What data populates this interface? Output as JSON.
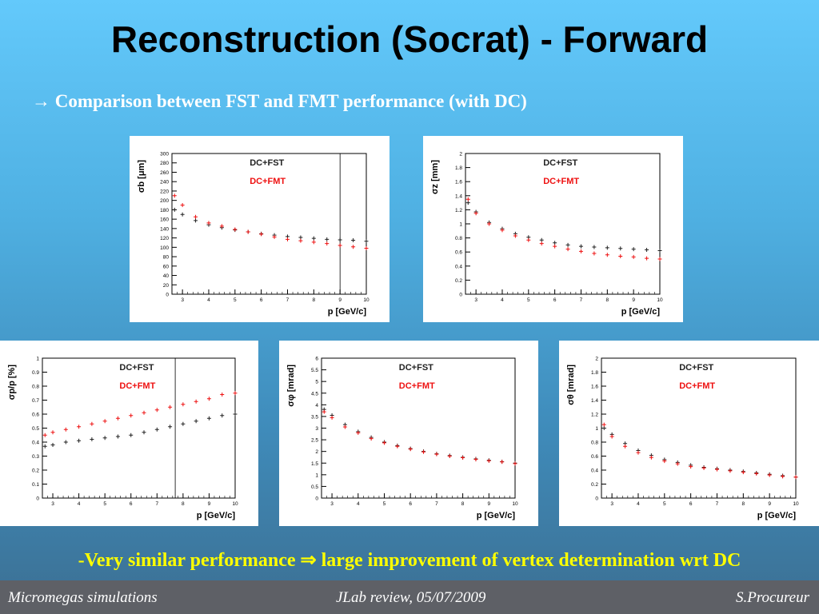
{
  "slide": {
    "title": "Reconstruction (Socrat) - Forward",
    "subtitle": "→ Comparison between FST and FMT performance (with DC)",
    "conclusion": "-Very similar performance ⇒ large improvement of vertex determination wrt DC",
    "footer": {
      "left": "Micromegas simulations",
      "center": "JLab review, 05/07/2009",
      "right": "S.Procureur"
    }
  },
  "colors": {
    "dc_fst": "#222222",
    "dc_fmt": "#ee1111",
    "axis": "#000000"
  },
  "chart_data": [
    {
      "type": "scatter",
      "ylabel": "σb [μm]",
      "xlabel": "p [GeV/c]",
      "xlim": [
        2.6,
        10
      ],
      "xticks": [
        3,
        4,
        5,
        6,
        7,
        8,
        9,
        10
      ],
      "ylim": [
        0,
        300
      ],
      "yticks": [
        0,
        20,
        40,
        60,
        80,
        100,
        120,
        140,
        160,
        180,
        200,
        220,
        240,
        260,
        280,
        300
      ],
      "vline": 9,
      "series": [
        {
          "name": "DC+FST",
          "x": [
            2.7,
            3,
            3.5,
            4,
            4.5,
            5,
            5.5,
            6,
            6.5,
            7,
            7.5,
            8,
            8.5,
            9,
            9.5,
            10
          ],
          "y": [
            180,
            170,
            157,
            148,
            142,
            137,
            133,
            129,
            126,
            123,
            121,
            119,
            117,
            116,
            115,
            113
          ]
        },
        {
          "name": "DC+FMT",
          "x": [
            2.7,
            3,
            3.5,
            4,
            4.5,
            5,
            5.5,
            6,
            6.5,
            7,
            7.5,
            8,
            8.5,
            9,
            9.5,
            10
          ],
          "y": [
            210,
            190,
            165,
            152,
            145,
            138,
            133,
            128,
            122,
            117,
            114,
            111,
            108,
            104,
            101,
            98
          ]
        }
      ]
    },
    {
      "type": "scatter",
      "ylabel": "σz [mm]",
      "xlabel": "p [GeV/c]",
      "xlim": [
        2.6,
        10
      ],
      "xticks": [
        3,
        4,
        5,
        6,
        7,
        8,
        9,
        10
      ],
      "ylim": [
        0,
        2
      ],
      "yticks": [
        0,
        0.2,
        0.4,
        0.6,
        0.8,
        1,
        1.2,
        1.4,
        1.6,
        1.8,
        2
      ],
      "series": [
        {
          "name": "DC+FST",
          "x": [
            2.7,
            3,
            3.5,
            4,
            4.5,
            5,
            5.5,
            6,
            6.5,
            7,
            7.5,
            8,
            8.5,
            9,
            9.5,
            10
          ],
          "y": [
            1.3,
            1.17,
            1.02,
            0.93,
            0.86,
            0.81,
            0.77,
            0.73,
            0.7,
            0.68,
            0.67,
            0.66,
            0.65,
            0.64,
            0.63,
            0.62
          ]
        },
        {
          "name": "DC+FMT",
          "x": [
            2.7,
            3,
            3.5,
            4,
            4.5,
            5,
            5.5,
            6,
            6.5,
            7,
            7.5,
            8,
            8.5,
            9,
            9.5,
            10
          ],
          "y": [
            1.35,
            1.15,
            1.0,
            0.91,
            0.83,
            0.77,
            0.72,
            0.68,
            0.64,
            0.61,
            0.58,
            0.56,
            0.54,
            0.53,
            0.51,
            0.5
          ]
        }
      ]
    },
    {
      "type": "scatter",
      "ylabel": "σp/p [%]",
      "xlabel": "p [GeV/c]",
      "xlim": [
        2.6,
        10
      ],
      "xticks": [
        3,
        4,
        5,
        6,
        7,
        8,
        9,
        10
      ],
      "ylim": [
        0,
        1
      ],
      "yticks": [
        0,
        0.1,
        0.2,
        0.3,
        0.4,
        0.5,
        0.6,
        0.7,
        0.8,
        0.9,
        1
      ],
      "vline": 7.7,
      "series": [
        {
          "name": "DC+FST",
          "x": [
            2.7,
            3,
            3.5,
            4,
            4.5,
            5,
            5.5,
            6,
            6.5,
            7,
            7.5,
            8,
            8.5,
            9,
            9.5,
            10
          ],
          "y": [
            0.37,
            0.38,
            0.4,
            0.41,
            0.42,
            0.43,
            0.44,
            0.45,
            0.47,
            0.49,
            0.51,
            0.53,
            0.55,
            0.57,
            0.59,
            0.6
          ]
        },
        {
          "name": "DC+FMT",
          "x": [
            2.7,
            3,
            3.5,
            4,
            4.5,
            5,
            5.5,
            6,
            6.5,
            7,
            7.5,
            8,
            8.5,
            9,
            9.5,
            10
          ],
          "y": [
            0.45,
            0.47,
            0.49,
            0.51,
            0.53,
            0.55,
            0.57,
            0.59,
            0.61,
            0.63,
            0.65,
            0.67,
            0.69,
            0.71,
            0.74,
            0.75
          ]
        }
      ]
    },
    {
      "type": "scatter",
      "ylabel": "σφ [mrad]",
      "xlabel": "p [GeV/c]",
      "xlim": [
        2.6,
        10
      ],
      "xticks": [
        3,
        4,
        5,
        6,
        7,
        8,
        9,
        10
      ],
      "ylim": [
        0,
        6
      ],
      "yticks": [
        0,
        0.5,
        1,
        1.5,
        2,
        2.5,
        3,
        3.5,
        4,
        4.5,
        5,
        5.5,
        6
      ],
      "series": [
        {
          "name": "DC+FST",
          "x": [
            2.7,
            3,
            3.5,
            4,
            4.5,
            5,
            5.5,
            6,
            6.5,
            7,
            7.5,
            8,
            8.5,
            9,
            9.5,
            10
          ],
          "y": [
            3.8,
            3.55,
            3.15,
            2.85,
            2.6,
            2.4,
            2.25,
            2.12,
            2.0,
            1.9,
            1.82,
            1.75,
            1.68,
            1.62,
            1.56,
            1.5
          ]
        },
        {
          "name": "DC+FMT",
          "x": [
            2.7,
            3,
            3.5,
            4,
            4.5,
            5,
            5.5,
            6,
            6.5,
            7,
            7.5,
            8,
            8.5,
            9,
            9.5,
            10
          ],
          "y": [
            3.7,
            3.45,
            3.05,
            2.8,
            2.55,
            2.37,
            2.22,
            2.1,
            1.98,
            1.88,
            1.8,
            1.73,
            1.66,
            1.6,
            1.55,
            1.48
          ]
        }
      ]
    },
    {
      "type": "scatter",
      "ylabel": "σθ [mrad]",
      "xlabel": "p [GeV/c]",
      "xlim": [
        2.6,
        10
      ],
      "xticks": [
        3,
        4,
        5,
        6,
        7,
        8,
        9,
        10
      ],
      "ylim": [
        0,
        2
      ],
      "yticks": [
        0,
        0.2,
        0.4,
        0.6,
        0.8,
        1,
        1.2,
        1.4,
        1.6,
        1.8,
        2
      ],
      "series": [
        {
          "name": "DC+FST",
          "x": [
            2.7,
            3,
            3.5,
            4,
            4.5,
            5,
            5.5,
            6,
            6.5,
            7,
            7.5,
            8,
            8.5,
            9,
            9.5,
            10
          ],
          "y": [
            1.0,
            0.91,
            0.78,
            0.68,
            0.61,
            0.55,
            0.51,
            0.47,
            0.44,
            0.42,
            0.4,
            0.38,
            0.36,
            0.34,
            0.32,
            0.3
          ]
        },
        {
          "name": "DC+FMT",
          "x": [
            2.7,
            3,
            3.5,
            4,
            4.5,
            5,
            5.5,
            6,
            6.5,
            7,
            7.5,
            8,
            8.5,
            9,
            9.5,
            10
          ],
          "y": [
            1.05,
            0.88,
            0.74,
            0.65,
            0.58,
            0.53,
            0.49,
            0.45,
            0.43,
            0.41,
            0.39,
            0.37,
            0.35,
            0.33,
            0.31,
            0.3
          ]
        }
      ]
    }
  ]
}
